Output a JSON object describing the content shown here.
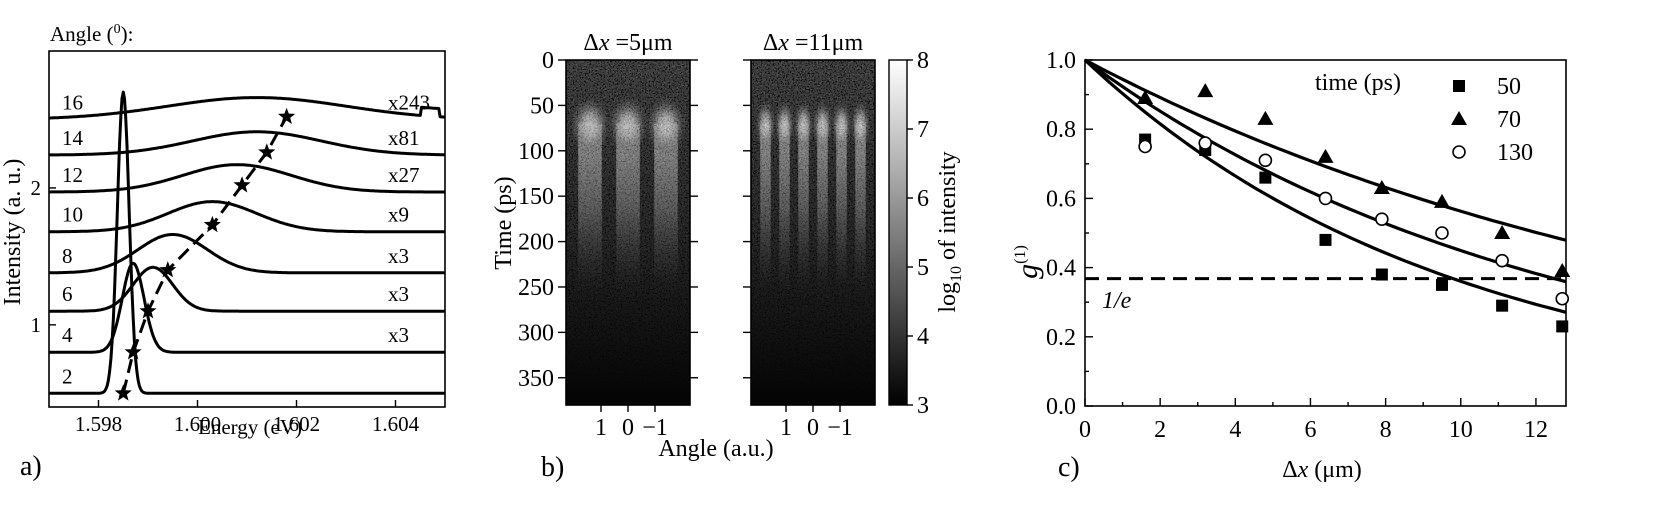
{
  "chart_data": [
    {
      "type": "line",
      "panel_label": "a)",
      "legend_title": "Angle (",
      "legend_title_sup": "0",
      "legend_title_end": "):",
      "xlabel": "Energy (eV)",
      "ylabel": "Intensity (a. u.)",
      "xlim": [
        1.597,
        1.605
      ],
      "xticks": [
        "1.598",
        "1.600",
        "1.602",
        "1.604"
      ],
      "xtick_values": [
        1.598,
        1.6,
        1.602,
        1.604
      ],
      "ylim": [
        0.4,
        3.0
      ],
      "yticks": [
        "1",
        "2"
      ],
      "ytick_values": [
        1,
        2
      ],
      "series": [
        {
          "name": "2",
          "multiplier": "",
          "baseline": 0.5,
          "peak_energy": 1.5985,
          "peak_height": 2.2,
          "width": 0.00012
        },
        {
          "name": "4",
          "multiplier": "x3",
          "baseline": 0.8,
          "peak_energy": 1.5987,
          "peak_height": 0.65,
          "width": 0.00022
        },
        {
          "name": "6",
          "multiplier": "x3",
          "baseline": 1.1,
          "peak_energy": 1.5991,
          "peak_height": 0.32,
          "width": 0.0004
        },
        {
          "name": "8",
          "multiplier": "x3",
          "baseline": 1.38,
          "peak_energy": 1.5995,
          "peak_height": 0.28,
          "width": 0.0007
        },
        {
          "name": "10",
          "multiplier": "x9",
          "baseline": 1.68,
          "peak_energy": 1.6003,
          "peak_height": 0.22,
          "width": 0.0009
        },
        {
          "name": "12",
          "multiplier": "x27",
          "baseline": 1.97,
          "peak_energy": 1.6008,
          "peak_height": 0.2,
          "width": 0.0011
        },
        {
          "name": "14",
          "multiplier": "x81",
          "baseline": 2.24,
          "peak_energy": 1.6012,
          "peak_height": 0.17,
          "width": 0.0013
        },
        {
          "name": "16",
          "multiplier": "x243",
          "baseline": 2.5,
          "peak_energy": 1.6012,
          "peak_height": 0.16,
          "width": 0.0018
        }
      ],
      "stars": [
        {
          "x": 1.5985,
          "y": 0.5
        },
        {
          "x": 1.5987,
          "y": 0.8
        },
        {
          "x": 1.599,
          "y": 1.1
        },
        {
          "x": 1.5994,
          "y": 1.4
        },
        {
          "x": 1.6003,
          "y": 1.73
        },
        {
          "x": 1.6009,
          "y": 2.02
        },
        {
          "x": 1.6014,
          "y": 2.26
        },
        {
          "x": 1.6018,
          "y": 2.52
        }
      ]
    },
    {
      "type": "heatmap",
      "panel_label": "b)",
      "xlabel": "Angle (a.u.)",
      "ylabel": "Time (ps)",
      "ylim": [
        0,
        380
      ],
      "yticks": [
        "0",
        "50",
        "100",
        "150",
        "200",
        "250",
        "300",
        "350"
      ],
      "ytick_values": [
        0,
        50,
        100,
        150,
        200,
        250,
        300,
        350
      ],
      "xticks": [
        "1",
        "0",
        "−1"
      ],
      "xtick_values": [
        1,
        0,
        -1
      ],
      "panels": [
        {
          "title_prefix": "Δ",
          "title_var": "x",
          "title_value": " =5",
          "title_unit": "μm",
          "fringes": 3
        },
        {
          "title_prefix": "Δ",
          "title_var": "x",
          "title_value": " =11",
          "title_unit": "μm",
          "fringes": 6
        }
      ],
      "colorbar": {
        "label_prefix": "log",
        "label_sub": "10",
        "label_suffix": " of intensity",
        "range": [
          3,
          8
        ],
        "ticks": [
          "3",
          "4",
          "5",
          "6",
          "7",
          "8"
        ],
        "tick_values": [
          3,
          4,
          5,
          6,
          7,
          8
        ],
        "colors": {
          "low": "#000000",
          "high": "#ffffff"
        }
      }
    },
    {
      "type": "scatter",
      "panel_label": "c)",
      "xlabel_prefix": "Δ",
      "xlabel_var": "x",
      "xlabel_unit": " (μm)",
      "ylabel": "g",
      "ylabel_sup": "(1)",
      "xlim": [
        0,
        12.8
      ],
      "ylim": [
        0,
        1.0
      ],
      "xticks": [
        "0",
        "2",
        "4",
        "6",
        "8",
        "10",
        "12"
      ],
      "xtick_values": [
        0,
        2,
        4,
        6,
        8,
        10,
        12
      ],
      "yticks": [
        "0.0",
        "0.2",
        "0.4",
        "0.6",
        "0.8",
        "1.0"
      ],
      "ytick_values": [
        0.0,
        0.2,
        0.4,
        0.6,
        0.8,
        1.0
      ],
      "legend_title": "time (ps)",
      "threshold": {
        "label": "1/e",
        "y": 0.368
      },
      "series": [
        {
          "name": "50",
          "marker": "square",
          "x": [
            1.6,
            3.2,
            4.8,
            6.4,
            7.9,
            9.5,
            11.1,
            12.7
          ],
          "y": [
            0.77,
            0.74,
            0.66,
            0.48,
            0.38,
            0.35,
            0.29,
            0.23
          ],
          "fit_decay": 9.8
        },
        {
          "name": "70",
          "marker": "triangle",
          "x": [
            1.6,
            3.2,
            4.8,
            6.4,
            7.9,
            9.5,
            11.1,
            12.7
          ],
          "y": [
            0.89,
            0.91,
            0.83,
            0.72,
            0.63,
            0.59,
            0.5,
            0.39
          ],
          "fit_decay": 17.4
        },
        {
          "name": "130",
          "marker": "circle",
          "x": [
            1.6,
            3.2,
            4.8,
            6.4,
            7.9,
            9.5,
            11.1,
            12.7
          ],
          "y": [
            0.75,
            0.76,
            0.71,
            0.6,
            0.54,
            0.5,
            0.42,
            0.31
          ],
          "fit_decay": 12.5
        }
      ]
    }
  ]
}
